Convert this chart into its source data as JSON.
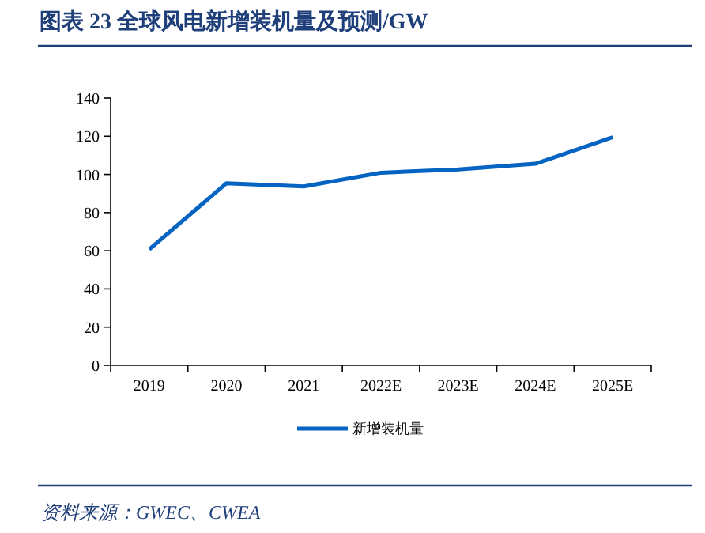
{
  "chart_data": {
    "type": "line",
    "title": "图表 23 全球风电新增装机量及预测/GW",
    "categories": [
      "2019",
      "2020",
      "2021",
      "2022E",
      "2023E",
      "2024E",
      "2025E"
    ],
    "series": [
      {
        "name": "新增装机量",
        "color": "#0563c1",
        "values": [
          60.7,
          95.4,
          93.7,
          100.9,
          102.6,
          105.6,
          119.5
        ]
      }
    ],
    "ylim": [
      0,
      140
    ],
    "yticks": [
      0,
      20,
      40,
      60,
      80,
      100,
      120,
      140
    ],
    "grid": false,
    "legend": "bottom",
    "marker": "none",
    "line_style": "solid",
    "annotations": [
      "资料来源：GWEC、CWEA"
    ]
  }
}
